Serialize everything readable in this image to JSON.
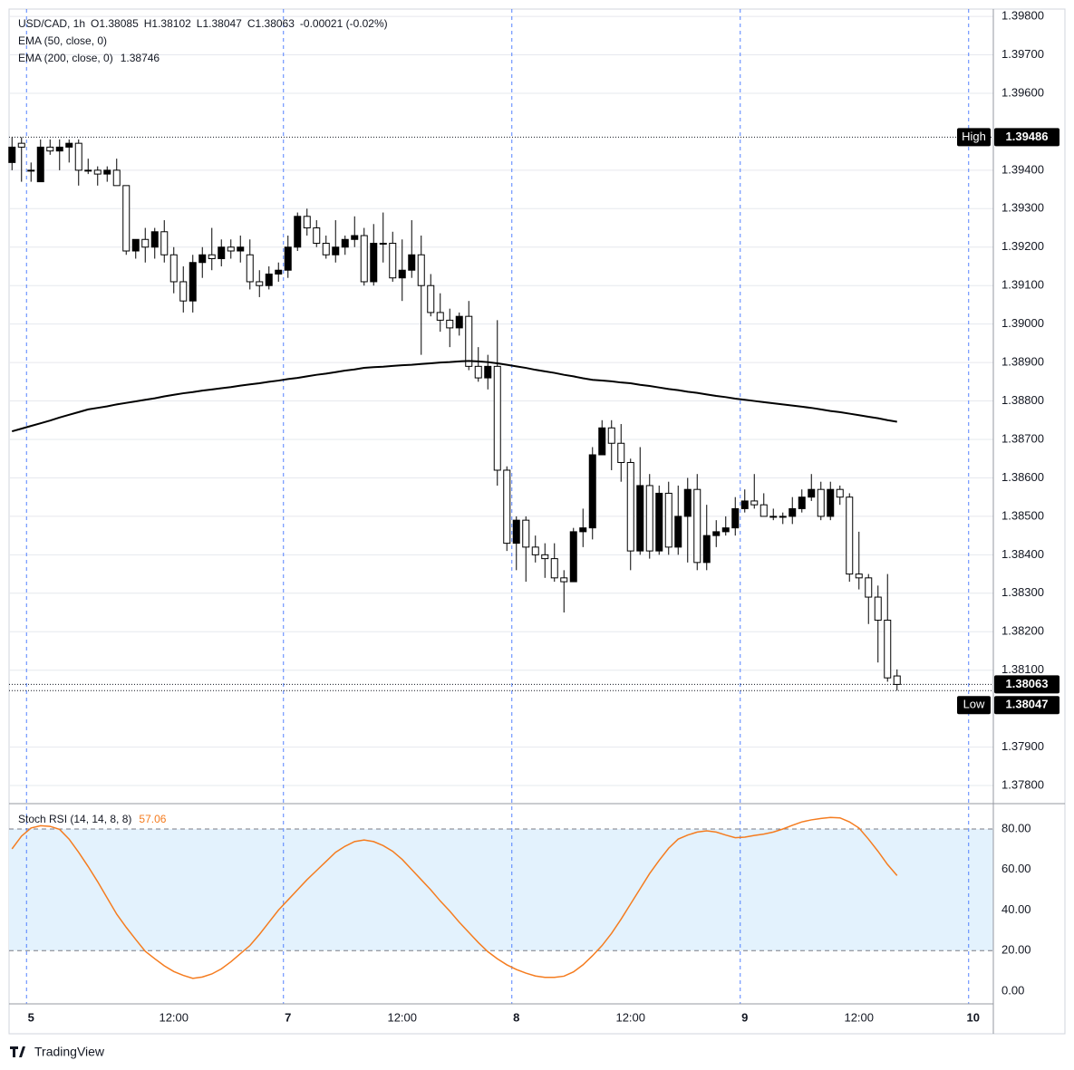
{
  "chart_data": [
    {
      "type": "candlestick",
      "legend_title": "USD/CAD, 1h",
      "legend_values": [
        "O1.38085",
        "H1.38102",
        "L1.38047",
        "C1.38063",
        "-0.00021 (-0.02%)"
      ],
      "categories": [
        null,
        null,
        "5",
        null,
        null,
        null,
        null,
        null,
        null,
        null,
        null,
        null,
        null,
        null,
        null,
        null,
        null,
        "12:00",
        null,
        null,
        null,
        null,
        null,
        null,
        null,
        null,
        null,
        null,
        null,
        "7",
        null,
        null,
        null,
        null,
        null,
        null,
        null,
        null,
        null,
        null,
        null,
        "12:00",
        null,
        null,
        null,
        null,
        null,
        null,
        null,
        null,
        null,
        null,
        null,
        "8",
        null,
        null,
        null,
        null,
        null,
        null,
        null,
        null,
        null,
        null,
        null,
        "12:00",
        null,
        null,
        null,
        null,
        null,
        null,
        null,
        null,
        null,
        null,
        null,
        "9",
        null,
        null,
        null,
        null,
        null,
        null,
        null,
        null,
        null,
        null,
        null,
        "12:00",
        null,
        null,
        null,
        null,
        null,
        null,
        null,
        null,
        null,
        null,
        null,
        "10",
        null
      ],
      "open": [
        1.3942,
        1.3947,
        1.394,
        1.3937,
        1.3946,
        1.3945,
        1.3946,
        1.3947,
        1.394,
        1.394,
        1.3939,
        1.394,
        1.3936,
        1.3919,
        1.3922,
        1.392,
        1.3924,
        1.3918,
        1.3911,
        1.3906,
        1.3916,
        1.3918,
        1.3917,
        1.392,
        1.3919,
        1.3918,
        1.3911,
        1.391,
        1.3913,
        1.3914,
        1.392,
        1.3928,
        1.3925,
        1.3921,
        1.3918,
        1.392,
        1.3922,
        1.3923,
        1.3911,
        1.3921,
        1.3921,
        1.3912,
        1.3914,
        1.3918,
        1.391,
        1.3903,
        1.3901,
        1.3899,
        1.3902,
        1.3889,
        1.3886,
        1.3889,
        1.3862,
        1.3843,
        1.3849,
        1.3842,
        1.384,
        1.3839,
        1.3834,
        1.3833,
        1.3846,
        1.3847,
        1.3866,
        1.3873,
        1.3869,
        1.3864,
        1.3841,
        1.3858,
        1.3841,
        1.3856,
        1.3842,
        1.385,
        1.3857,
        1.3838,
        1.3845,
        1.3846,
        1.3847,
        1.3852,
        1.3854,
        1.3853,
        1.385,
        1.385,
        1.385,
        1.3852,
        1.3855,
        1.3857,
        1.385,
        1.3857,
        1.3855,
        1.3835,
        1.3834,
        1.3829,
        1.3823,
        1.38085,
        null,
        null,
        null,
        null,
        null,
        null,
        null,
        null,
        null
      ],
      "high": [
        1.39486,
        1.39486,
        1.3942,
        1.3948,
        1.3948,
        1.3948,
        1.3948,
        1.3948,
        1.3943,
        1.3941,
        1.3941,
        1.3943,
        1.3936,
        1.3922,
        1.3925,
        1.3925,
        1.3927,
        1.392,
        1.3915,
        1.3918,
        1.392,
        1.3925,
        1.3922,
        1.3922,
        1.3923,
        1.3922,
        1.3914,
        1.3915,
        1.3916,
        1.3923,
        1.3929,
        1.393,
        1.3927,
        1.3923,
        1.3927,
        1.3923,
        1.3928,
        1.3925,
        1.3926,
        1.3929,
        1.3924,
        1.3922,
        1.3927,
        1.3923,
        1.3913,
        1.3908,
        1.3904,
        1.3903,
        1.3906,
        1.3894,
        1.3892,
        1.3901,
        1.3863,
        1.385,
        1.385,
        1.3845,
        1.3843,
        1.3843,
        1.3836,
        1.3847,
        1.3852,
        1.3868,
        1.3875,
        1.3875,
        1.3874,
        1.3865,
        1.3868,
        1.3861,
        1.3858,
        1.3859,
        1.3858,
        1.386,
        1.3861,
        1.3853,
        1.3849,
        1.385,
        1.3855,
        1.3857,
        1.3861,
        1.3856,
        1.3852,
        1.3851,
        1.3855,
        1.3857,
        1.3861,
        1.3859,
        1.3859,
        1.3858,
        1.3856,
        1.3846,
        1.3835,
        1.3832,
        1.3835,
        1.38102,
        null,
        null,
        null,
        null,
        null,
        null,
        null,
        null,
        null
      ],
      "low": [
        1.394,
        1.3937,
        1.3937,
        1.3937,
        1.3944,
        1.394,
        1.3942,
        1.3936,
        1.3939,
        1.3936,
        1.3937,
        1.3936,
        1.3918,
        1.3917,
        1.3916,
        1.3917,
        1.3916,
        1.3908,
        1.3903,
        1.3903,
        1.3912,
        1.3914,
        1.3915,
        1.3917,
        1.3916,
        1.3909,
        1.3907,
        1.3909,
        1.3911,
        1.3912,
        1.3919,
        1.3923,
        1.392,
        1.3917,
        1.3916,
        1.3918,
        1.392,
        1.391,
        1.391,
        1.3916,
        1.3911,
        1.3906,
        1.3912,
        1.3892,
        1.3902,
        1.3898,
        1.3894,
        1.3897,
        1.3888,
        1.3885,
        1.3883,
        1.3858,
        1.3841,
        1.3836,
        1.3833,
        1.3838,
        1.3834,
        1.3833,
        1.3825,
        1.3833,
        1.3842,
        1.3844,
        1.3866,
        1.3862,
        1.3859,
        1.3836,
        1.384,
        1.3839,
        1.384,
        1.384,
        1.384,
        1.3838,
        1.3836,
        1.3836,
        1.3842,
        1.3845,
        1.3845,
        1.3851,
        1.3852,
        1.385,
        1.3849,
        1.3848,
        1.3848,
        1.3851,
        1.3854,
        1.3849,
        1.3849,
        1.3853,
        1.3833,
        1.3831,
        1.3822,
        1.3812,
        1.3807,
        1.38047,
        null,
        null,
        null,
        null,
        null,
        null,
        null,
        null,
        null
      ],
      "close": [
        1.3946,
        1.3946,
        1.394,
        1.3946,
        1.3945,
        1.3946,
        1.3947,
        1.394,
        1.394,
        1.3939,
        1.394,
        1.3936,
        1.3919,
        1.3922,
        1.392,
        1.3924,
        1.3918,
        1.3911,
        1.3906,
        1.3916,
        1.3918,
        1.3917,
        1.392,
        1.3919,
        1.392,
        1.3911,
        1.391,
        1.3913,
        1.3914,
        1.392,
        1.3928,
        1.3925,
        1.3921,
        1.3918,
        1.392,
        1.3922,
        1.3923,
        1.3911,
        1.3921,
        1.3921,
        1.3912,
        1.3914,
        1.3918,
        1.391,
        1.3903,
        1.3901,
        1.3899,
        1.3902,
        1.3889,
        1.3886,
        1.3889,
        1.3862,
        1.3843,
        1.3849,
        1.3842,
        1.384,
        1.3839,
        1.3834,
        1.3833,
        1.3846,
        1.3847,
        1.3866,
        1.3873,
        1.3869,
        1.3864,
        1.3841,
        1.3858,
        1.3841,
        1.3856,
        1.3842,
        1.385,
        1.3857,
        1.3838,
        1.3845,
        1.3846,
        1.3847,
        1.3852,
        1.3854,
        1.3853,
        1.385,
        1.385,
        1.385,
        1.3852,
        1.3855,
        1.3857,
        1.385,
        1.3857,
        1.3855,
        1.3835,
        1.3834,
        1.3829,
        1.3823,
        1.3808,
        1.38063,
        null,
        null,
        null,
        null,
        null,
        null,
        null,
        null,
        null
      ],
      "up_color": "#000000",
      "down_color": "#ffffff",
      "separator_color": "#2962ff",
      "grid": true,
      "ylim": [
        1.37753,
        1.39819
      ],
      "yticks": [
        {
          "value": 1.378,
          "label": "1.37800"
        },
        {
          "value": 1.379,
          "label": "1.37900"
        },
        {
          "value": 1.381,
          "label": "1.38100"
        },
        {
          "value": 1.382,
          "label": "1.38200"
        },
        {
          "value": 1.383,
          "label": "1.38300"
        },
        {
          "value": 1.384,
          "label": "1.38400"
        },
        {
          "value": 1.385,
          "label": "1.38500"
        },
        {
          "value": 1.386,
          "label": "1.38600"
        },
        {
          "value": 1.387,
          "label": "1.38700"
        },
        {
          "value": 1.388,
          "label": "1.38800"
        },
        {
          "value": 1.389,
          "label": "1.38900"
        },
        {
          "value": 1.39,
          "label": "1.39000"
        },
        {
          "value": 1.391,
          "label": "1.39100"
        },
        {
          "value": 1.392,
          "label": "1.39200"
        },
        {
          "value": 1.393,
          "label": "1.39300"
        },
        {
          "value": 1.394,
          "label": "1.39400"
        },
        {
          "value": 1.396,
          "label": "1.39600"
        },
        {
          "value": 1.397,
          "label": "1.39700"
        },
        {
          "value": 1.398,
          "label": "1.39800"
        }
      ],
      "indicators": [
        {
          "name": "EMA (50, close, 0)"
        },
        {
          "name": "EMA (200, close, 0)",
          "color": "#000000",
          "values": [
            1.38721,
            1.38728,
            1.38735,
            1.38742,
            1.38749,
            1.38757,
            1.38764,
            1.38771,
            1.38778,
            1.38782,
            1.38786,
            1.38791,
            1.38795,
            1.38799,
            1.38803,
            1.38807,
            1.38812,
            1.38816,
            1.3882,
            1.38823,
            1.38827,
            1.3883,
            1.38833,
            1.38836,
            1.3884,
            1.38843,
            1.38846,
            1.3885,
            1.38853,
            1.38857,
            1.3886,
            1.38864,
            1.38868,
            1.38871,
            1.38875,
            1.38879,
            1.38882,
            1.38886,
            1.38888,
            1.38889,
            1.38891,
            1.38893,
            1.38894,
            1.38896,
            1.38898,
            1.389,
            1.38901,
            1.38903,
            1.38904,
            1.38903,
            1.38901,
            1.38898,
            1.38894,
            1.3889,
            1.38886,
            1.38881,
            1.38877,
            1.38873,
            1.38868,
            1.38864,
            1.38859,
            1.38855,
            1.38853,
            1.38851,
            1.38848,
            1.38846,
            1.38842,
            1.38839,
            1.38835,
            1.38831,
            1.38828,
            1.38824,
            1.38821,
            1.38817,
            1.38813,
            1.3881,
            1.38806,
            1.38803,
            1.388,
            1.38797,
            1.38794,
            1.38791,
            1.38788,
            1.38785,
            1.38782,
            1.38778,
            1.38774,
            1.38771,
            1.38767,
            1.38763,
            1.38759,
            1.38755,
            1.3875,
            1.38746,
            null,
            null,
            null,
            null,
            null,
            null,
            null,
            null,
            null
          ]
        }
      ],
      "high_marker": {
        "label": "High",
        "value": 1.39486
      },
      "low_marker": {
        "label": "Low",
        "value": 1.38047
      },
      "last_price": 1.38063
    },
    {
      "type": "line",
      "series": [
        {
          "name": "Stoch RSI (14, 14, 8, 8)",
          "color": "#f57c1f",
          "values": [
            70.2,
            76.5,
            80.5,
            81.6,
            81.3,
            79.8,
            75,
            68.5,
            61.5,
            54,
            46,
            38,
            31.5,
            25.5,
            19.7,
            16,
            12.5,
            9.7,
            7.8,
            6.3,
            7,
            8.5,
            11,
            14.5,
            18.5,
            22.5,
            28,
            34,
            40,
            45,
            50,
            55,
            59.5,
            64,
            68.5,
            71.5,
            73.8,
            74.6,
            73.8,
            71.8,
            69,
            65,
            60,
            55,
            50,
            44.5,
            39.5,
            34,
            29,
            24,
            19.5,
            16,
            13,
            10.7,
            8.9,
            7.5,
            6.8,
            6.8,
            7.4,
            9.5,
            13,
            17.5,
            22.5,
            28.5,
            35.5,
            43,
            50.5,
            58,
            64.5,
            70.5,
            75,
            77,
            78.5,
            79.1,
            78.5,
            77,
            75.7,
            76,
            76.8,
            77.5,
            78.5,
            80,
            81.8,
            83.5,
            84.5,
            85.2,
            85.7,
            85.5,
            83.5,
            80.5,
            75,
            69,
            62.5,
            57.06,
            null,
            null,
            null,
            null,
            null,
            null,
            null,
            null,
            null
          ]
        }
      ],
      "band": {
        "lower": 20,
        "upper": 80,
        "color": "#e3f2fd"
      },
      "ylim": [
        -6.26,
        92.07
      ],
      "yticks": [
        {
          "value": 0,
          "label": "0.00"
        },
        {
          "value": 20,
          "label": "20.00"
        },
        {
          "value": 40,
          "label": "40.00"
        },
        {
          "value": 60,
          "label": "60.00"
        },
        {
          "value": 80,
          "label": "80.00"
        }
      ]
    }
  ],
  "footer": {
    "brand": "TradingView"
  }
}
